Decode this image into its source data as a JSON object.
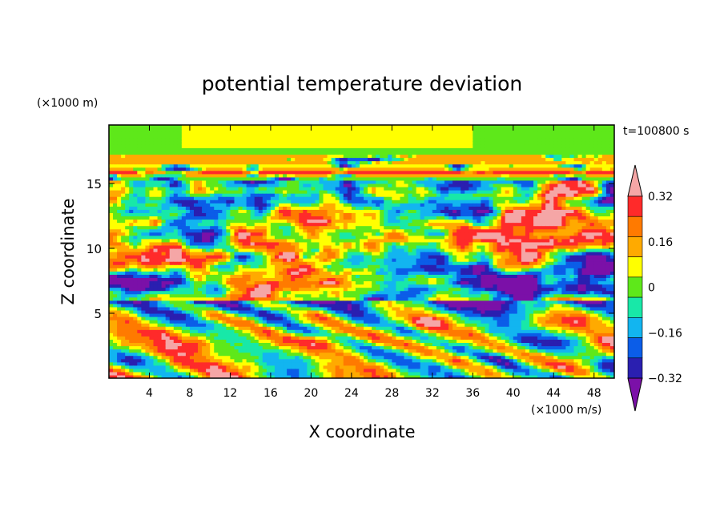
{
  "chart_data": {
    "type": "heatmap",
    "title": "potential temperature deviation",
    "xlabel": "X coordinate",
    "ylabel": "Z coordinate",
    "x_unit": "(×1000 m/s)",
    "y_unit": "(×1000 m)",
    "time_label": "t=100800 s",
    "xlim": [
      0,
      50
    ],
    "ylim": [
      0,
      19.5
    ],
    "x_ticks": [
      4,
      8,
      12,
      16,
      20,
      24,
      28,
      32,
      36,
      40,
      44,
      48
    ],
    "y_ticks": [
      5,
      10,
      15
    ],
    "colorbar": {
      "levels": [
        -0.4,
        -0.32,
        -0.24,
        -0.16,
        -0.08,
        0,
        0.08,
        0.16,
        0.24,
        0.32,
        0.4
      ],
      "tick_labels": [
        "0.32",
        "0.16",
        "0",
        "−0.16",
        "−0.32"
      ],
      "tick_values": [
        0.32,
        0.16,
        0,
        -0.16,
        -0.32
      ],
      "colors": [
        "#7b10a8",
        "#2a1fb0",
        "#0b5de8",
        "#12b5f0",
        "#18e8a8",
        "#5ee81a",
        "#ffff00",
        "#ffaa00",
        "#ff7a00",
        "#ff2a2a",
        "#f5a6a6"
      ]
    }
  }
}
